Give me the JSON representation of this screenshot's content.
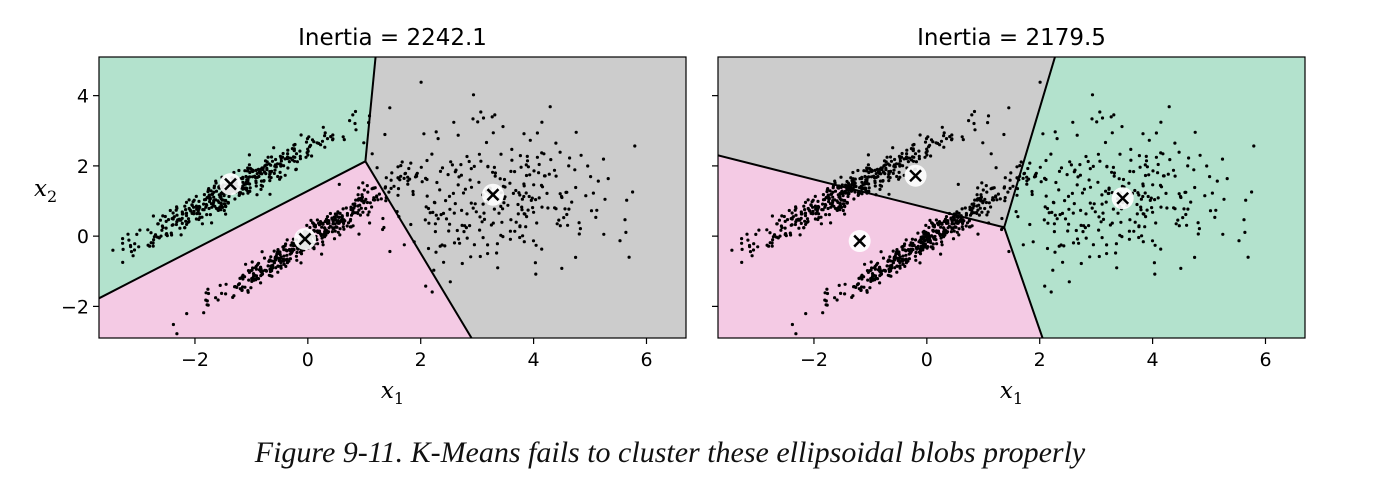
{
  "chart_data": [
    {
      "type": "scatter",
      "title": "Inertia = 2242.1",
      "xlabel": "x",
      "xlabel_sub": "1",
      "ylabel": "x",
      "ylabel_sub": "2",
      "xlim": [
        -3.7,
        6.7
      ],
      "ylim": [
        -2.9,
        5.1
      ],
      "xticks": [
        -2,
        0,
        2,
        4,
        6
      ],
      "yticks": [
        -2,
        0,
        2,
        4
      ],
      "show_yticklabels": true,
      "grid": false,
      "regions": [
        {
          "color": "#b3e2cd",
          "polygon": [
            [
              -3.7,
              -1.77
            ],
            [
              1.02,
              2.13
            ],
            [
              1.2,
              5.1
            ],
            [
              -3.7,
              5.1
            ]
          ]
        },
        {
          "color": "#f4cae4",
          "polygon": [
            [
              -3.7,
              -2.9
            ],
            [
              2.9,
              -2.9
            ],
            [
              1.02,
              2.13
            ],
            [
              -3.7,
              -1.77
            ]
          ]
        },
        {
          "color": "#cccccc",
          "polygon": [
            [
              1.02,
              2.13
            ],
            [
              2.9,
              -2.9
            ],
            [
              6.7,
              -2.9
            ],
            [
              6.7,
              5.1
            ],
            [
              1.2,
              5.1
            ]
          ]
        }
      ],
      "boundaries": [
        [
          [
            -3.7,
            -1.77
          ],
          [
            1.02,
            2.13
          ]
        ],
        [
          [
            1.02,
            2.13
          ],
          [
            1.2,
            5.1
          ]
        ],
        [
          [
            1.02,
            2.13
          ],
          [
            2.9,
            -2.9
          ]
        ]
      ],
      "centroids": [
        [
          -1.37,
          1.48
        ],
        [
          -0.05,
          -0.08
        ],
        [
          3.28,
          1.18
        ]
      ]
    },
    {
      "type": "scatter",
      "title": "Inertia = 2179.5",
      "xlabel": "x",
      "xlabel_sub": "1",
      "xlim": [
        -3.7,
        6.7
      ],
      "ylim": [
        -2.9,
        5.1
      ],
      "xticks": [
        -2,
        0,
        2,
        4,
        6
      ],
      "yticks": [
        -2,
        0,
        2,
        4
      ],
      "show_yticklabels": false,
      "grid": false,
      "regions": [
        {
          "color": "#cccccc",
          "polygon": [
            [
              -3.7,
              2.3
            ],
            [
              1.37,
              0.25
            ],
            [
              2.27,
              5.1
            ],
            [
              -3.7,
              5.1
            ]
          ]
        },
        {
          "color": "#f4cae4",
          "polygon": [
            [
              -3.7,
              -2.9
            ],
            [
              2.05,
              -2.9
            ],
            [
              1.37,
              0.25
            ],
            [
              -3.7,
              2.3
            ]
          ]
        },
        {
          "color": "#b3e2cd",
          "polygon": [
            [
              1.37,
              0.25
            ],
            [
              2.05,
              -2.9
            ],
            [
              6.7,
              -2.9
            ],
            [
              6.7,
              5.1
            ],
            [
              2.27,
              5.1
            ]
          ]
        }
      ],
      "boundaries": [
        [
          [
            -3.7,
            2.3
          ],
          [
            1.37,
            0.25
          ]
        ],
        [
          [
            1.37,
            0.25
          ],
          [
            2.27,
            5.1
          ]
        ],
        [
          [
            1.37,
            0.25
          ],
          [
            2.05,
            -2.9
          ]
        ]
      ],
      "centroids": [
        [
          -0.2,
          1.72
        ],
        [
          -1.19,
          -0.14
        ],
        [
          3.47,
          1.08
        ]
      ]
    }
  ],
  "caption": "Figure 9-11. K-Means fails to cluster these ellipsoidal blobs properly"
}
